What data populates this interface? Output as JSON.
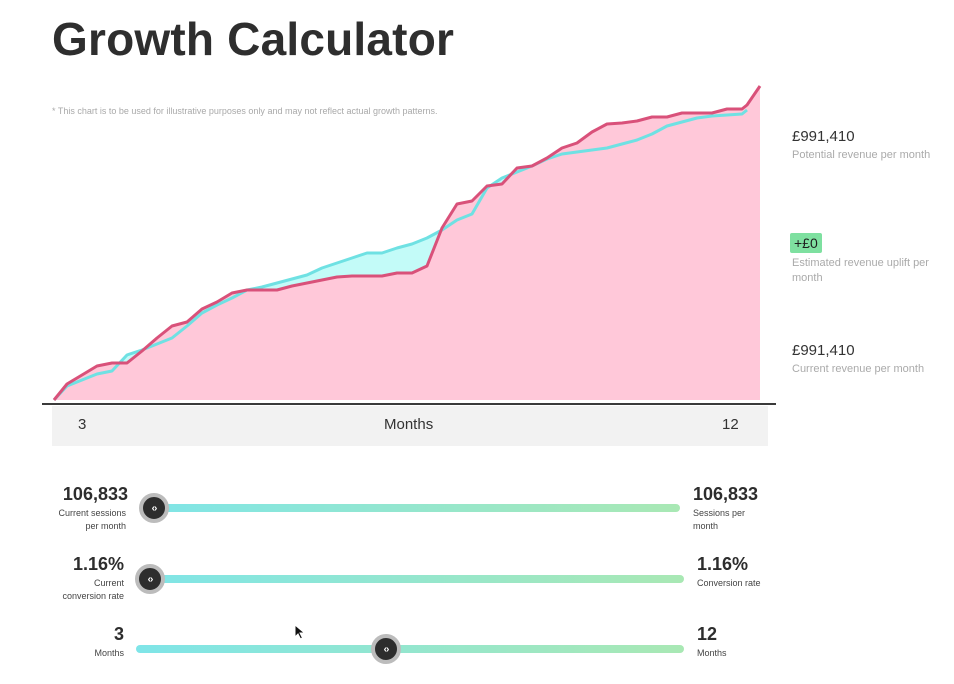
{
  "page": {
    "title": "Growth Calculator",
    "disclaimer": "* This chart is to be used for illustrative purposes only and may not reflect actual growth patterns."
  },
  "chart_axis": {
    "start_label": "3",
    "axis_label": "Months",
    "end_label": "12"
  },
  "summary": {
    "potential_value": "£991,410",
    "potential_caption": "Potential revenue per month",
    "uplift_value": "+£0",
    "uplift_caption": "Estimated revenue uplift per month",
    "current_value": "£991,410",
    "current_caption": "Current revenue per month"
  },
  "sliders": {
    "sessions": {
      "current_value": "106,833",
      "current_caption_1": "Current sessions",
      "current_caption_2": "per month",
      "target_value": "106,833",
      "target_caption_1": "Sessions per",
      "target_caption_2": "month",
      "knob_level": 0.0
    },
    "conversion": {
      "current_value": "1.16%",
      "current_caption_1": "Current",
      "current_caption_2": "conversion rate",
      "target_value": "1.16%",
      "target_caption": "Conversion rate",
      "knob_level": 0.0
    },
    "months": {
      "current_value": "3",
      "current_caption": "Months",
      "target_value": "12",
      "target_caption": "Months",
      "knob_level": 0.46
    }
  },
  "colors": {
    "area_fill": "#ffc8d9",
    "current_line": "#d9517a",
    "potential_fill": "#c3fbf8",
    "potential_line": "#6fe1e3",
    "uplift_badge": "#7ee0a0"
  },
  "icons": {
    "knob": "code-arrows-icon",
    "cursor": "mouse-pointer-icon"
  }
}
